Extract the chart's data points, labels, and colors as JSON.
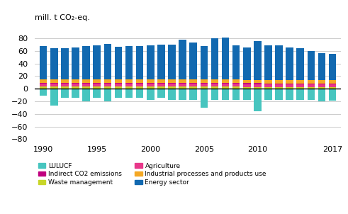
{
  "years": [
    1990,
    1991,
    1992,
    1993,
    1994,
    1995,
    1996,
    1997,
    1998,
    1999,
    2000,
    2001,
    2002,
    2003,
    2004,
    2005,
    2006,
    2007,
    2008,
    2009,
    2010,
    2011,
    2012,
    2013,
    2014,
    2015,
    2016,
    2017
  ],
  "energy": [
    53,
    50,
    50,
    51,
    53,
    54,
    57,
    52,
    53,
    53,
    54,
    55,
    55,
    63,
    58,
    53,
    65,
    66,
    55,
    52,
    62,
    55,
    55,
    52,
    51,
    46,
    43,
    42
  ],
  "industrial": [
    5.5,
    5.2,
    5.0,
    5.2,
    5.3,
    5.2,
    5.0,
    5.3,
    5.5,
    5.5,
    5.5,
    5.5,
    5.5,
    5.5,
    5.5,
    5.5,
    5.5,
    5.5,
    5.0,
    4.5,
    5.0,
    5.0,
    5.0,
    4.8,
    4.8,
    4.8,
    4.8,
    4.8
  ],
  "agriculture": [
    5.0,
    5.0,
    5.0,
    5.0,
    5.0,
    5.0,
    5.0,
    5.0,
    5.0,
    5.0,
    4.8,
    4.8,
    4.8,
    4.8,
    4.8,
    4.8,
    4.8,
    4.8,
    4.8,
    4.5,
    4.5,
    4.5,
    4.5,
    4.5,
    4.5,
    4.5,
    4.5,
    4.5
  ],
  "waste": [
    3.0,
    3.0,
    3.0,
    3.0,
    3.0,
    3.0,
    3.0,
    3.0,
    3.0,
    3.0,
    3.0,
    3.0,
    3.0,
    3.0,
    3.0,
    3.0,
    3.0,
    3.0,
    3.0,
    2.8,
    2.8,
    2.5,
    2.5,
    2.5,
    2.5,
    2.5,
    2.5,
    2.5
  ],
  "indirect": [
    1.5,
    1.5,
    1.5,
    1.5,
    1.5,
    1.5,
    1.5,
    1.5,
    1.5,
    1.5,
    1.5,
    1.5,
    1.5,
    1.5,
    1.5,
    1.5,
    1.5,
    1.5,
    1.5,
    1.5,
    1.5,
    1.5,
    1.5,
    1.5,
    1.5,
    1.5,
    1.5,
    1.5
  ],
  "lulucf": [
    -11,
    -27,
    -14,
    -14,
    -20,
    -14,
    -20,
    -14,
    -14,
    -14,
    -18,
    -14,
    -18,
    -18,
    -18,
    -30,
    -18,
    -18,
    -18,
    -18,
    -36,
    -18,
    -18,
    -18,
    -18,
    -18,
    -20,
    -19
  ],
  "colors": {
    "energy": "#1269b0",
    "industrial": "#f4a824",
    "agriculture": "#e8388a",
    "waste": "#c8d629",
    "indirect": "#c0007f",
    "lulucf": "#47c5bf"
  },
  "ylabel": "mill. t CO₂-eq.",
  "ylim": [
    -80,
    100
  ],
  "yticks": [
    -80,
    -60,
    -40,
    -20,
    0,
    20,
    40,
    60,
    80
  ],
  "xticks": [
    1990,
    1995,
    2000,
    2005,
    2010,
    2017
  ],
  "legend_items_left": [
    {
      "label": "LULUCF",
      "color": "#47c5bf"
    },
    {
      "label": "Waste management",
      "color": "#c8d629"
    },
    {
      "label": "Industrial processes and products use",
      "color": "#f4a824"
    }
  ],
  "legend_items_right": [
    {
      "label": "Indirect CO2 emissions",
      "color": "#c0007f"
    },
    {
      "label": "Agriculture",
      "color": "#e8388a"
    },
    {
      "label": "Energy sector",
      "color": "#1269b0"
    }
  ]
}
